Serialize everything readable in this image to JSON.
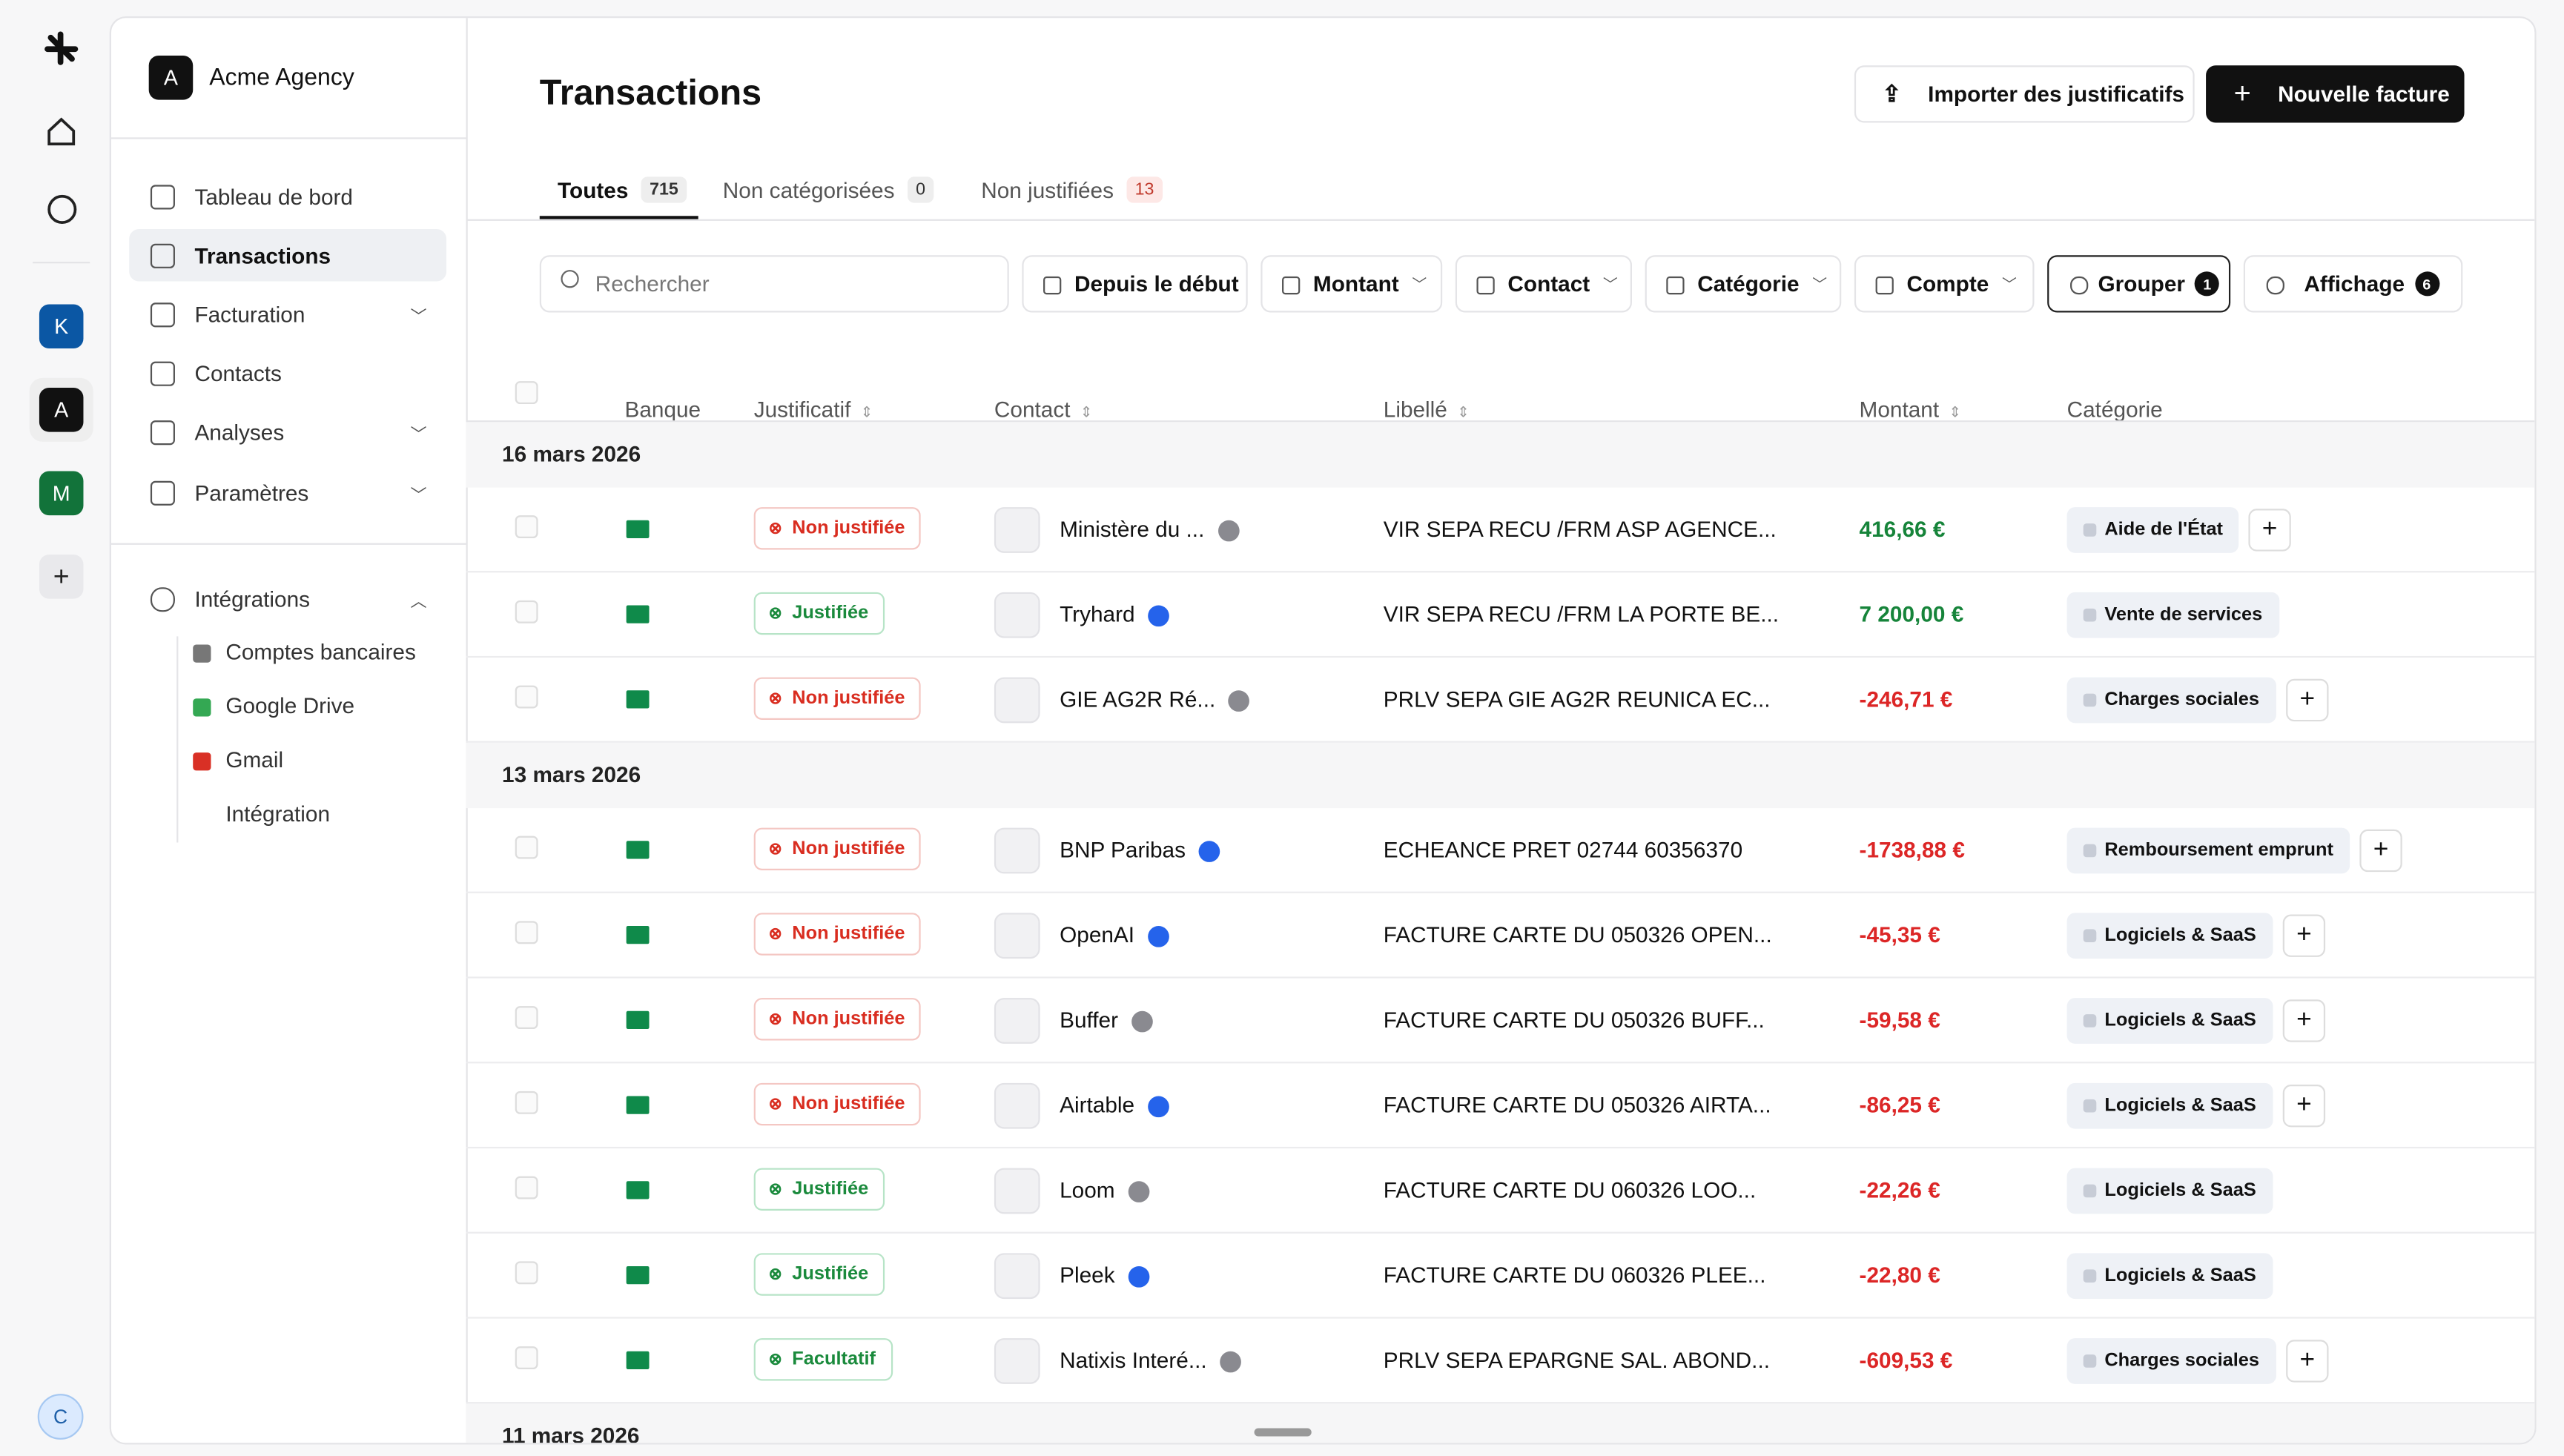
{
  "rail": {
    "workspaces": [
      "K",
      "A",
      "M"
    ],
    "user": "C"
  },
  "sidebar": {
    "org_initial": "A",
    "org": "Acme Agency",
    "nav": [
      "Tableau de bord",
      "Transactions",
      "Facturation",
      "Contacts",
      "Analyses",
      "Paramètres"
    ],
    "integrations": "Intégrations",
    "integration_items": [
      "Comptes bancaires",
      "Google Drive",
      "Gmail",
      "Intégration"
    ]
  },
  "header": {
    "title": "Transactions",
    "import_button": "Importer des justificatifs",
    "new_button": "Nouvelle facture"
  },
  "tabs": [
    {
      "label": "Toutes",
      "count": 715
    },
    {
      "label": "Non catégorisées",
      "count": 0
    },
    {
      "label": "Non justifiées",
      "count": 13
    }
  ],
  "filters": {
    "search": "Rechercher",
    "buttons": [
      "Depuis le début",
      "Montant",
      "Contact",
      "Catégorie",
      "Compte"
    ],
    "group": "Grouper",
    "group_count": 1,
    "display": "Affichage",
    "display_count": 6
  },
  "table": {
    "columns": [
      "Banque",
      "Justificatif",
      "Contact",
      "Libellé",
      "Montant",
      "Catégorie"
    ],
    "groups": [
      {
        "date": "16 mars 2026",
        "rows": [
          {
            "status": "Non justifiée",
            "tone": "danger",
            "contact": "Ministère du ...",
            "verified": false,
            "label": "VIR SEPA RECU /FRM ASP AGENCE...",
            "amount": "416,66 €",
            "category": "Aide de l'État",
            "add": true
          },
          {
            "status": "Justifiée",
            "tone": "success",
            "contact": "Tryhard",
            "verified": true,
            "label": "VIR SEPA RECU /FRM LA PORTE BE...",
            "amount": "7 200,00 €",
            "category": "Vente de services",
            "add": false
          },
          {
            "status": "Non justifiée",
            "tone": "danger",
            "contact": "GIE AG2R Ré...",
            "verified": false,
            "label": "PRLV SEPA GIE AG2R REUNICA EC...",
            "amount": "-246,71 €",
            "category": "Charges sociales",
            "add": true
          }
        ]
      },
      {
        "date": "13 mars 2026",
        "rows": [
          {
            "status": "Non justifiée",
            "tone": "danger",
            "contact": "BNP Paribas",
            "verified": true,
            "label": "ECHEANCE PRET 02744 60356370",
            "amount": "-1738,88 €",
            "category": "Remboursement emprunt",
            "add": true
          },
          {
            "status": "Non justifiée",
            "tone": "danger",
            "contact": "OpenAI",
            "verified": true,
            "label": "FACTURE CARTE DU 050326 OPEN...",
            "amount": "-45,35 €",
            "category": "Logiciels & SaaS",
            "add": true
          },
          {
            "status": "Non justifiée",
            "tone": "danger",
            "contact": "Buffer",
            "verified": false,
            "label": "FACTURE CARTE DU 050326 BUFF...",
            "amount": "-59,58 €",
            "category": "Logiciels & SaaS",
            "add": true
          },
          {
            "status": "Non justifiée",
            "tone": "danger",
            "contact": "Airtable",
            "verified": true,
            "label": "FACTURE CARTE DU 050326 AIRTA...",
            "amount": "-86,25 €",
            "category": "Logiciels & SaaS",
            "add": true
          },
          {
            "status": "Justifiée",
            "tone": "success",
            "contact": "Loom",
            "verified": false,
            "label": "FACTURE CARTE DU 060326 LOO...",
            "amount": "-22,26 €",
            "category": "Logiciels & SaaS",
            "add": false
          },
          {
            "status": "Justifiée",
            "tone": "success",
            "contact": "Pleek",
            "verified": true,
            "label": "FACTURE CARTE DU 060326 PLEE...",
            "amount": "-22,80 €",
            "category": "Logiciels & SaaS",
            "add": false
          },
          {
            "status": "Facultatif",
            "tone": "success",
            "contact": "Natixis Interé...",
            "verified": false,
            "label": "PRLV SEPA EPARGNE SAL. ABOND...",
            "amount": "-609,53 €",
            "category": "Charges sociales",
            "add": true
          }
        ]
      },
      {
        "date": "11 mars 2026",
        "rows": []
      }
    ]
  }
}
